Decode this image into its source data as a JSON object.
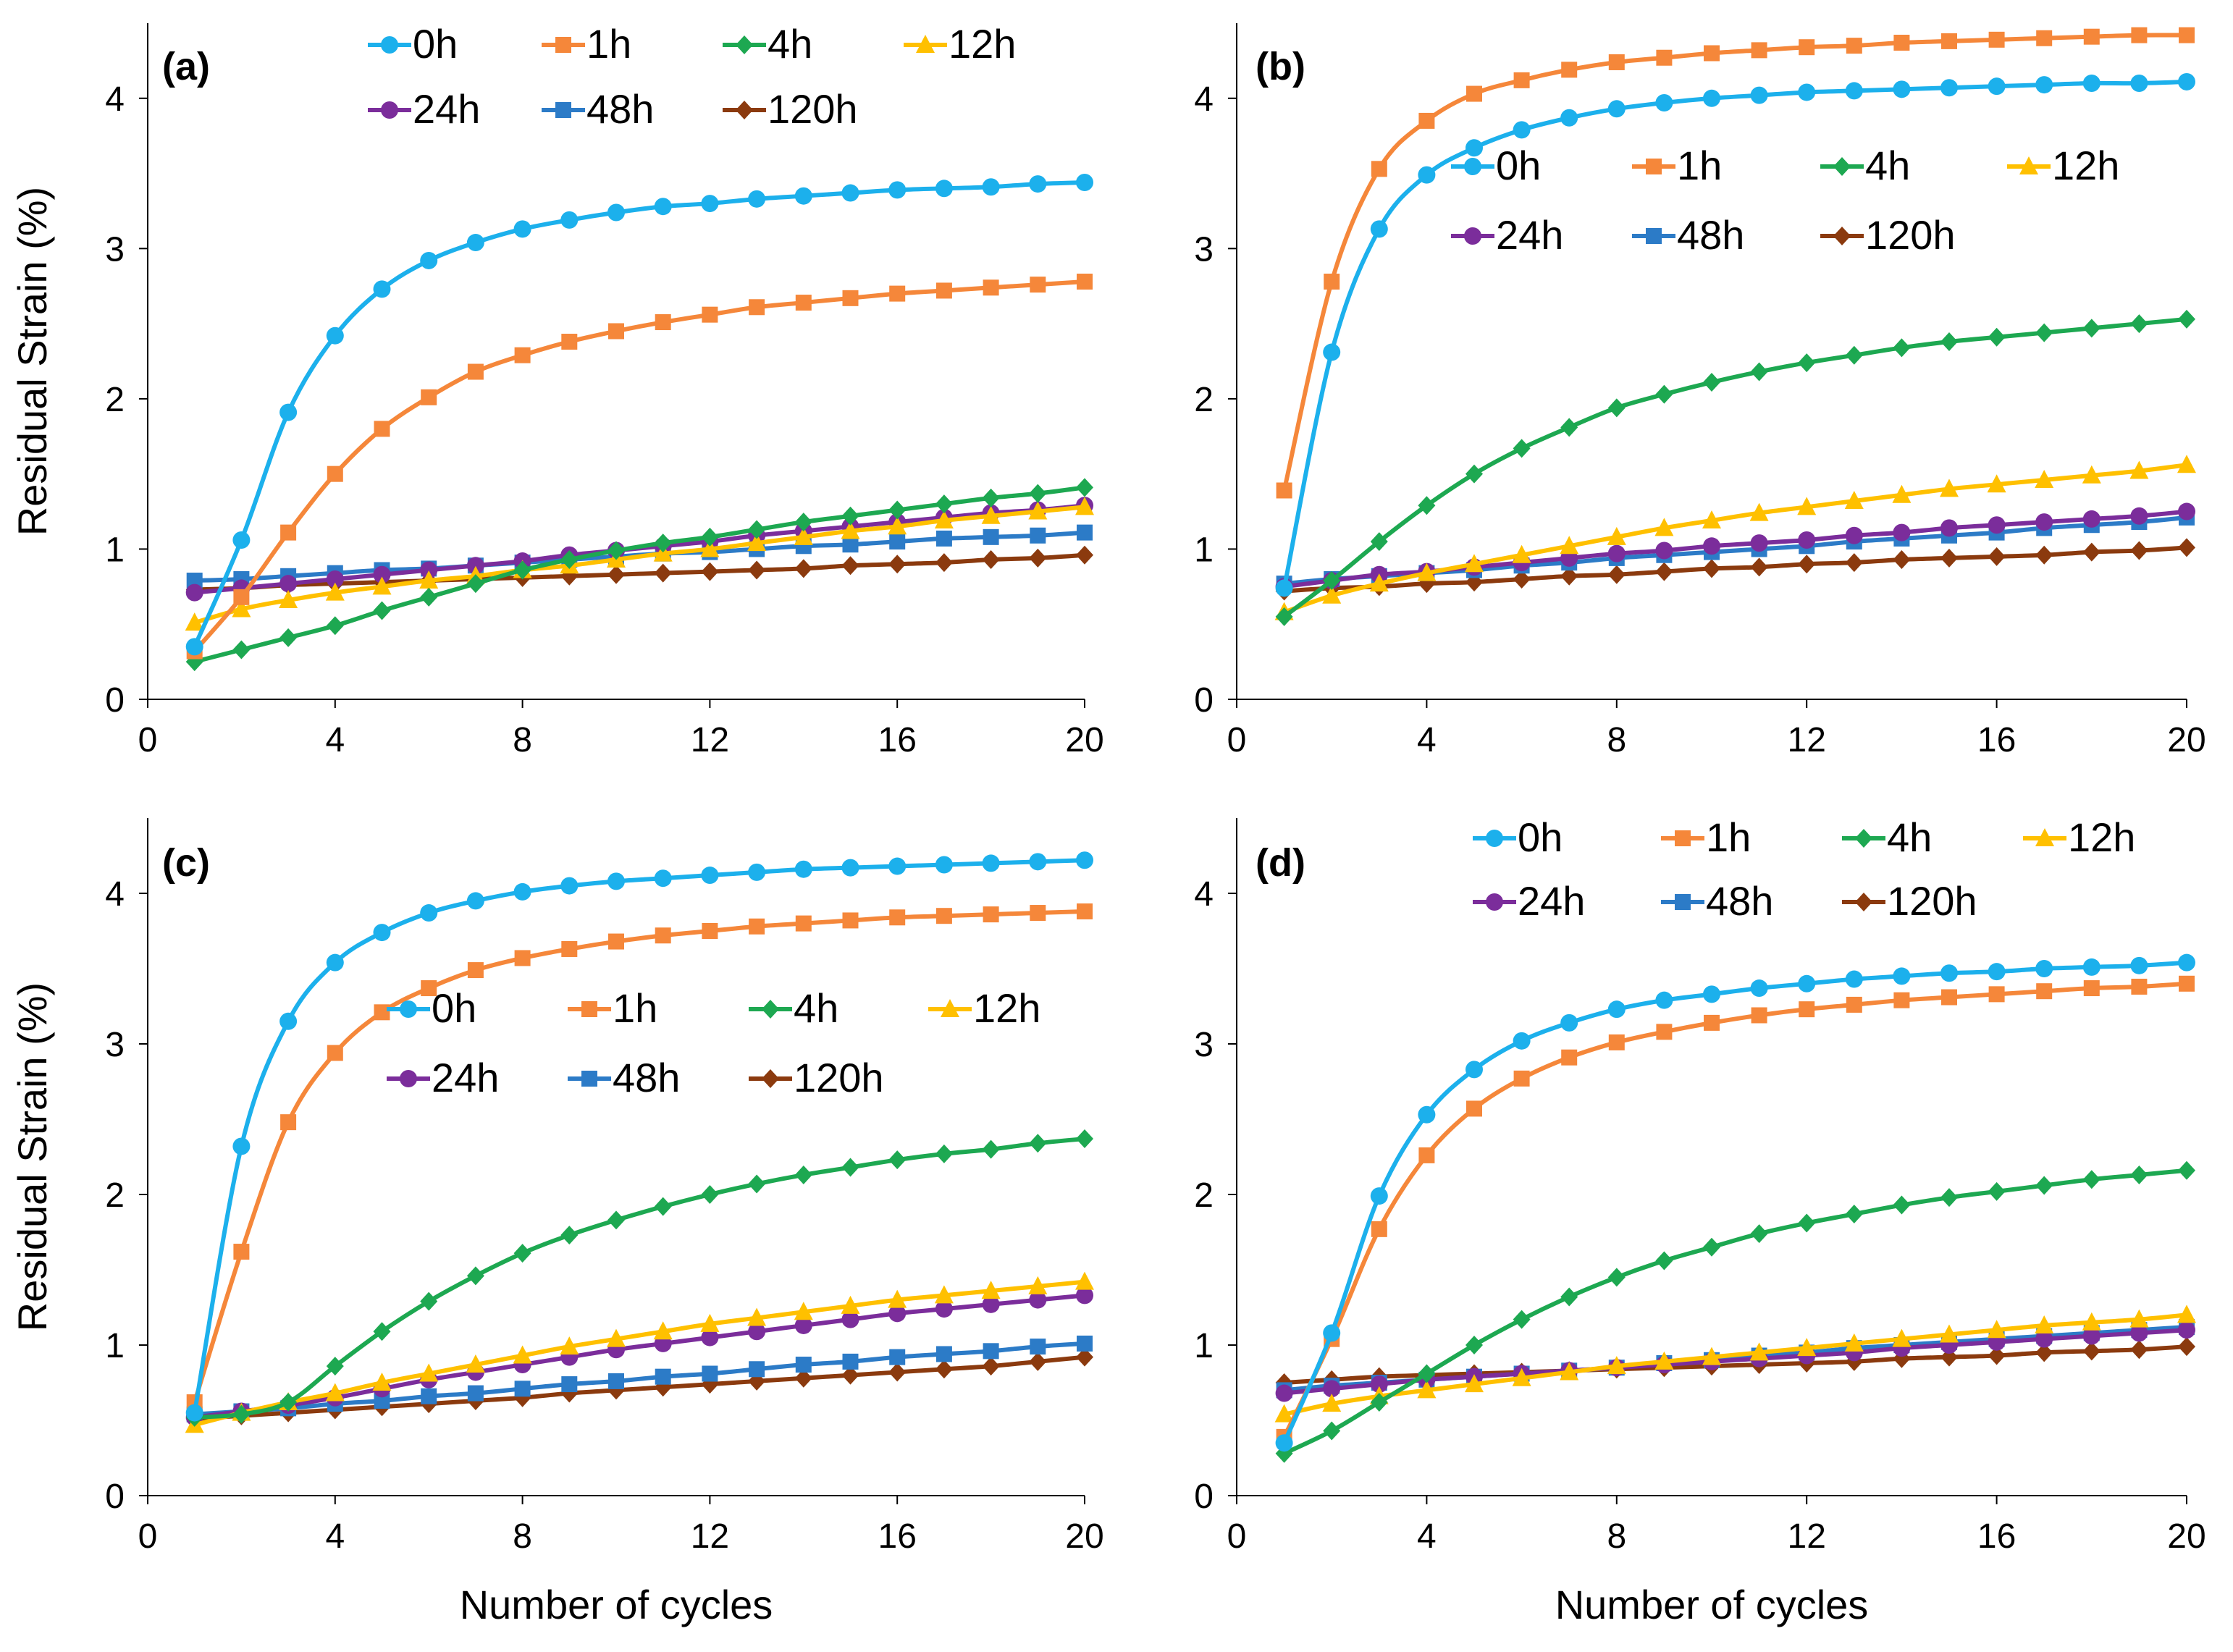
{
  "chart_data": [
    {
      "type": "line",
      "panel_label": "(a)",
      "title": "",
      "xlabel": "",
      "ylabel": "Residual Strain (%)",
      "xlim": [
        0,
        20
      ],
      "ylim": [
        0,
        4.5
      ],
      "x_ticks": [
        0,
        4,
        8,
        12,
        16,
        20
      ],
      "y_ticks": [
        0,
        1,
        2,
        3,
        4
      ],
      "legend_position": "top",
      "legend_rows": [
        [
          "0h",
          "1h",
          "4h",
          "12h"
        ],
        [
          "24h",
          "48h",
          "120h"
        ]
      ],
      "x": [
        1,
        2,
        3,
        4,
        5,
        6,
        7,
        8,
        9,
        10,
        11,
        12,
        13,
        14,
        15,
        16,
        17,
        18,
        19,
        20
      ],
      "series": [
        {
          "name": "0h",
          "color": "#1CB0EC",
          "marker": "circle",
          "values": [
            0.35,
            1.06,
            1.91,
            2.42,
            2.73,
            2.92,
            3.04,
            3.13,
            3.19,
            3.24,
            3.28,
            3.3,
            3.33,
            3.35,
            3.37,
            3.39,
            3.4,
            3.41,
            3.43,
            3.44
          ]
        },
        {
          "name": "1h",
          "color": "#F5873A",
          "marker": "square",
          "values": [
            0.32,
            0.68,
            1.11,
            1.5,
            1.8,
            2.01,
            2.18,
            2.29,
            2.38,
            2.45,
            2.51,
            2.56,
            2.61,
            2.64,
            2.67,
            2.7,
            2.72,
            2.74,
            2.76,
            2.78
          ]
        },
        {
          "name": "4h",
          "color": "#1DA851",
          "marker": "diamond",
          "values": [
            0.25,
            0.33,
            0.41,
            0.49,
            0.59,
            0.68,
            0.77,
            0.86,
            0.93,
            0.99,
            1.04,
            1.08,
            1.13,
            1.18,
            1.22,
            1.26,
            1.3,
            1.34,
            1.37,
            1.41
          ]
        },
        {
          "name": "12h",
          "color": "#FFC000",
          "marker": "triangle",
          "values": [
            0.51,
            0.6,
            0.66,
            0.71,
            0.75,
            0.79,
            0.82,
            0.86,
            0.89,
            0.93,
            0.97,
            1.0,
            1.04,
            1.08,
            1.12,
            1.15,
            1.19,
            1.22,
            1.25,
            1.28
          ]
        },
        {
          "name": "24h",
          "color": "#7B2D9B",
          "marker": "circle",
          "values": [
            0.71,
            0.74,
            0.77,
            0.8,
            0.83,
            0.86,
            0.89,
            0.92,
            0.96,
            0.99,
            1.02,
            1.05,
            1.09,
            1.12,
            1.15,
            1.18,
            1.21,
            1.24,
            1.26,
            1.29
          ]
        },
        {
          "name": "48h",
          "color": "#2C7BC7",
          "marker": "square",
          "values": [
            0.79,
            0.8,
            0.82,
            0.84,
            0.86,
            0.87,
            0.89,
            0.91,
            0.93,
            0.95,
            0.97,
            0.98,
            1.0,
            1.02,
            1.03,
            1.05,
            1.07,
            1.08,
            1.09,
            1.11
          ]
        },
        {
          "name": "120h",
          "color": "#8B3A0E",
          "marker": "diamond",
          "values": [
            0.73,
            0.74,
            0.76,
            0.77,
            0.78,
            0.79,
            0.8,
            0.81,
            0.82,
            0.83,
            0.84,
            0.85,
            0.86,
            0.87,
            0.89,
            0.9,
            0.91,
            0.93,
            0.94,
            0.96
          ]
        }
      ]
    },
    {
      "type": "line",
      "panel_label": "(b)",
      "title": "",
      "xlabel": "",
      "ylabel": "",
      "xlim": [
        0,
        20
      ],
      "ylim": [
        0,
        4.5
      ],
      "x_ticks": [
        0,
        4,
        8,
        12,
        16,
        20
      ],
      "y_ticks": [
        0,
        1,
        2,
        3,
        4
      ],
      "legend_position": "upper-middle",
      "legend_rows": [
        [
          "0h",
          "1h",
          "4h",
          "12h"
        ],
        [
          "24h",
          "48h",
          "120h"
        ]
      ],
      "x": [
        1,
        2,
        3,
        4,
        5,
        6,
        7,
        8,
        9,
        10,
        11,
        12,
        13,
        14,
        15,
        16,
        17,
        18,
        19,
        20
      ],
      "series": [
        {
          "name": "0h",
          "color": "#1CB0EC",
          "marker": "circle",
          "values": [
            0.74,
            2.31,
            3.13,
            3.49,
            3.67,
            3.79,
            3.87,
            3.93,
            3.97,
            4.0,
            4.02,
            4.04,
            4.05,
            4.06,
            4.07,
            4.08,
            4.09,
            4.1,
            4.1,
            4.11
          ]
        },
        {
          "name": "1h",
          "color": "#F5873A",
          "marker": "square",
          "values": [
            1.39,
            2.78,
            3.53,
            3.85,
            4.03,
            4.12,
            4.19,
            4.24,
            4.27,
            4.3,
            4.32,
            4.34,
            4.35,
            4.37,
            4.38,
            4.39,
            4.4,
            4.41,
            4.42,
            4.42
          ]
        },
        {
          "name": "4h",
          "color": "#1DA851",
          "marker": "diamond",
          "values": [
            0.55,
            0.79,
            1.05,
            1.29,
            1.5,
            1.67,
            1.81,
            1.94,
            2.03,
            2.11,
            2.18,
            2.24,
            2.29,
            2.34,
            2.38,
            2.41,
            2.44,
            2.47,
            2.5,
            2.53
          ]
        },
        {
          "name": "12h",
          "color": "#FFC000",
          "marker": "triangle",
          "values": [
            0.58,
            0.69,
            0.77,
            0.84,
            0.9,
            0.96,
            1.02,
            1.08,
            1.14,
            1.19,
            1.24,
            1.28,
            1.32,
            1.36,
            1.4,
            1.43,
            1.46,
            1.49,
            1.52,
            1.56
          ]
        },
        {
          "name": "24h",
          "color": "#7B2D9B",
          "marker": "circle",
          "values": [
            0.75,
            0.79,
            0.83,
            0.85,
            0.88,
            0.91,
            0.94,
            0.97,
            0.99,
            1.02,
            1.04,
            1.06,
            1.09,
            1.11,
            1.14,
            1.16,
            1.18,
            1.2,
            1.22,
            1.25
          ]
        },
        {
          "name": "48h",
          "color": "#2C7BC7",
          "marker": "square",
          "values": [
            0.77,
            0.8,
            0.82,
            0.84,
            0.86,
            0.89,
            0.91,
            0.94,
            0.96,
            0.98,
            1.0,
            1.02,
            1.05,
            1.07,
            1.09,
            1.11,
            1.14,
            1.16,
            1.18,
            1.21
          ]
        },
        {
          "name": "120h",
          "color": "#8B3A0E",
          "marker": "diamond",
          "values": [
            0.72,
            0.74,
            0.75,
            0.77,
            0.78,
            0.8,
            0.82,
            0.83,
            0.85,
            0.87,
            0.88,
            0.9,
            0.91,
            0.93,
            0.94,
            0.95,
            0.96,
            0.98,
            0.99,
            1.01
          ]
        }
      ]
    },
    {
      "type": "line",
      "panel_label": "(c)",
      "title": "",
      "xlabel": "Number of cycles",
      "ylabel": "Residual Strain (%)",
      "xlim": [
        0,
        20
      ],
      "ylim": [
        0,
        4.5
      ],
      "x_ticks": [
        0,
        4,
        8,
        12,
        16,
        20
      ],
      "y_ticks": [
        0,
        1,
        2,
        3,
        4
      ],
      "legend_position": "upper-middle",
      "legend_rows": [
        [
          "0h",
          "1h",
          "4h",
          "12h"
        ],
        [
          "24h",
          "48h",
          "120h"
        ]
      ],
      "x": [
        1,
        2,
        3,
        4,
        5,
        6,
        7,
        8,
        9,
        10,
        11,
        12,
        13,
        14,
        15,
        16,
        17,
        18,
        19,
        20
      ],
      "series": [
        {
          "name": "0h",
          "color": "#1CB0EC",
          "marker": "circle",
          "values": [
            0.55,
            2.32,
            3.15,
            3.54,
            3.74,
            3.87,
            3.95,
            4.01,
            4.05,
            4.08,
            4.1,
            4.12,
            4.14,
            4.16,
            4.17,
            4.18,
            4.19,
            4.2,
            4.21,
            4.22
          ]
        },
        {
          "name": "1h",
          "color": "#F5873A",
          "marker": "square",
          "values": [
            0.62,
            1.62,
            2.48,
            2.94,
            3.21,
            3.37,
            3.49,
            3.57,
            3.63,
            3.68,
            3.72,
            3.75,
            3.78,
            3.8,
            3.82,
            3.84,
            3.85,
            3.86,
            3.87,
            3.88
          ]
        },
        {
          "name": "4h",
          "color": "#1DA851",
          "marker": "diamond",
          "values": [
            0.52,
            0.54,
            0.62,
            0.86,
            1.09,
            1.29,
            1.46,
            1.61,
            1.73,
            1.83,
            1.92,
            2.0,
            2.07,
            2.13,
            2.18,
            2.23,
            2.27,
            2.3,
            2.34,
            2.37
          ]
        },
        {
          "name": "12h",
          "color": "#FFC000",
          "marker": "triangle",
          "values": [
            0.47,
            0.55,
            0.62,
            0.68,
            0.75,
            0.81,
            0.87,
            0.93,
            0.99,
            1.04,
            1.09,
            1.14,
            1.18,
            1.22,
            1.26,
            1.3,
            1.33,
            1.36,
            1.39,
            1.42
          ]
        },
        {
          "name": "24h",
          "color": "#7B2D9B",
          "marker": "circle",
          "values": [
            0.52,
            0.56,
            0.6,
            0.65,
            0.71,
            0.77,
            0.82,
            0.87,
            0.92,
            0.97,
            1.01,
            1.05,
            1.09,
            1.13,
            1.17,
            1.21,
            1.24,
            1.27,
            1.3,
            1.33
          ]
        },
        {
          "name": "48h",
          "color": "#2C7BC7",
          "marker": "square",
          "values": [
            0.54,
            0.56,
            0.58,
            0.61,
            0.63,
            0.66,
            0.68,
            0.71,
            0.74,
            0.76,
            0.79,
            0.81,
            0.84,
            0.87,
            0.89,
            0.92,
            0.94,
            0.96,
            0.99,
            1.01
          ]
        },
        {
          "name": "120h",
          "color": "#8B3A0E",
          "marker": "diamond",
          "values": [
            0.51,
            0.53,
            0.55,
            0.57,
            0.59,
            0.61,
            0.63,
            0.65,
            0.68,
            0.7,
            0.72,
            0.74,
            0.76,
            0.78,
            0.8,
            0.82,
            0.84,
            0.86,
            0.89,
            0.92
          ]
        }
      ]
    },
    {
      "type": "line",
      "panel_label": "(d)",
      "title": "",
      "xlabel": "Number of cycles",
      "ylabel": "",
      "xlim": [
        0,
        20
      ],
      "ylim": [
        0,
        4.5
      ],
      "x_ticks": [
        0,
        4,
        8,
        12,
        16,
        20
      ],
      "y_ticks": [
        0,
        1,
        2,
        3,
        4
      ],
      "legend_position": "top",
      "legend_rows": [
        [
          "0h",
          "1h",
          "4h",
          "12h"
        ],
        [
          "24h",
          "48h",
          "120h"
        ]
      ],
      "x": [
        1,
        2,
        3,
        4,
        5,
        6,
        7,
        8,
        9,
        10,
        11,
        12,
        13,
        14,
        15,
        16,
        17,
        18,
        19,
        20
      ],
      "series": [
        {
          "name": "0h",
          "color": "#1CB0EC",
          "marker": "circle",
          "values": [
            0.35,
            1.08,
            1.99,
            2.53,
            2.83,
            3.02,
            3.14,
            3.23,
            3.29,
            3.33,
            3.37,
            3.4,
            3.43,
            3.45,
            3.47,
            3.48,
            3.5,
            3.51,
            3.52,
            3.54
          ]
        },
        {
          "name": "1h",
          "color": "#F5873A",
          "marker": "square",
          "values": [
            0.39,
            1.04,
            1.77,
            2.26,
            2.57,
            2.77,
            2.91,
            3.01,
            3.08,
            3.14,
            3.19,
            3.23,
            3.26,
            3.29,
            3.31,
            3.33,
            3.35,
            3.37,
            3.38,
            3.4
          ]
        },
        {
          "name": "4h",
          "color": "#1DA851",
          "marker": "diamond",
          "values": [
            0.28,
            0.43,
            0.62,
            0.81,
            1.0,
            1.17,
            1.32,
            1.45,
            1.56,
            1.65,
            1.74,
            1.81,
            1.87,
            1.93,
            1.98,
            2.02,
            2.06,
            2.1,
            2.13,
            2.16
          ]
        },
        {
          "name": "12h",
          "color": "#FFC000",
          "marker": "triangle",
          "values": [
            0.54,
            0.61,
            0.66,
            0.7,
            0.74,
            0.78,
            0.82,
            0.86,
            0.89,
            0.92,
            0.95,
            0.98,
            1.01,
            1.04,
            1.07,
            1.1,
            1.13,
            1.15,
            1.17,
            1.2
          ]
        },
        {
          "name": "24h",
          "color": "#7B2D9B",
          "marker": "circle",
          "values": [
            0.68,
            0.71,
            0.74,
            0.77,
            0.79,
            0.81,
            0.83,
            0.85,
            0.87,
            0.89,
            0.91,
            0.93,
            0.95,
            0.98,
            1.0,
            1.02,
            1.04,
            1.06,
            1.08,
            1.1
          ]
        },
        {
          "name": "48h",
          "color": "#2C7BC7",
          "marker": "square",
          "values": [
            0.7,
            0.73,
            0.75,
            0.77,
            0.79,
            0.81,
            0.83,
            0.85,
            0.88,
            0.9,
            0.93,
            0.95,
            0.98,
            1.0,
            1.02,
            1.04,
            1.06,
            1.08,
            1.1,
            1.12
          ]
        },
        {
          "name": "120h",
          "color": "#8B3A0E",
          "marker": "diamond",
          "values": [
            0.75,
            0.77,
            0.79,
            0.8,
            0.81,
            0.82,
            0.83,
            0.84,
            0.85,
            0.86,
            0.87,
            0.88,
            0.89,
            0.91,
            0.92,
            0.93,
            0.95,
            0.96,
            0.97,
            0.99
          ]
        }
      ]
    }
  ]
}
